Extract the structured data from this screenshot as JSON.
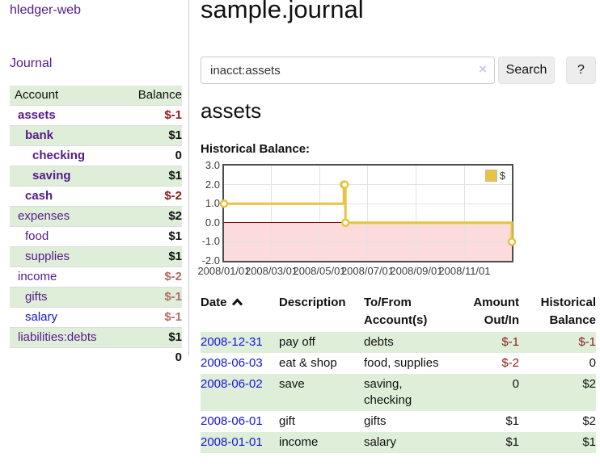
{
  "app_title": "hledger-web",
  "sidebar": {
    "journal_link": "Journal",
    "account_header": "Account",
    "balance_header": "Balance",
    "accounts": [
      {
        "name": "assets",
        "balance": "$-1"
      },
      {
        "name": "bank",
        "balance": "$1"
      },
      {
        "name": "checking",
        "balance": "0"
      },
      {
        "name": "saving",
        "balance": "$1"
      },
      {
        "name": "cash",
        "balance": "$-2"
      },
      {
        "name": "expenses",
        "balance": "$2"
      },
      {
        "name": "food",
        "balance": "$1"
      },
      {
        "name": "supplies",
        "balance": "$1"
      },
      {
        "name": "income",
        "balance": "$-2"
      },
      {
        "name": "gifts",
        "balance": "$-1"
      },
      {
        "name": "salary",
        "balance": "$-1"
      },
      {
        "name": "liabilities:debts",
        "balance": "$1"
      }
    ],
    "total": "0"
  },
  "main": {
    "title": "sample.journal",
    "search": {
      "value": "inacct:assets",
      "clear_icon": "×",
      "search_button": "Search",
      "help_button": "?"
    },
    "account_heading": "assets",
    "section_label": "Historical Balance:"
  },
  "chart_data": {
    "type": "line",
    "stepped": true,
    "title": "Historical Balance:",
    "x_range": [
      "2008-01-01",
      "2008-12-31"
    ],
    "ylim": [
      -2,
      3
    ],
    "y_ticks": [
      "3.0",
      "2.0",
      "1.0",
      "0.0",
      "-1.0",
      "-2.0"
    ],
    "x_ticks": [
      {
        "date": "2008-01-01",
        "label": "2008/01/01"
      },
      {
        "date": "2008-03-01",
        "label": "2008/03/01"
      },
      {
        "date": "2008-05-01",
        "label": "2008/05/01"
      },
      {
        "date": "2008-07-01",
        "label": "2008/07/01"
      },
      {
        "date": "2008-09-01",
        "label": "2008/09/01"
      },
      {
        "date": "2008-11-01",
        "label": "2008/11/01"
      }
    ],
    "series": [
      {
        "name": "$",
        "color": "#e9c23e",
        "points": [
          {
            "date": "2008-01-01",
            "value": 1
          },
          {
            "date": "2008-06-01",
            "value": 2
          },
          {
            "date": "2008-06-02",
            "value": 2
          },
          {
            "date": "2008-06-03",
            "value": 0
          },
          {
            "date": "2008-12-31",
            "value": -1
          }
        ]
      }
    ],
    "legend": {
      "label": "$",
      "position": "top-right"
    },
    "grid": true,
    "negative_region_color": "#fbdbdb",
    "zero_line_color": "#8b0000"
  },
  "register": {
    "headers": {
      "date": "Date",
      "description": "Description",
      "accounts": "To/From Account(s)",
      "amount": "Amount Out/In",
      "balance": "Historical Balance"
    },
    "rows": [
      {
        "date": "2008-12-31",
        "description": "pay off",
        "accounts": "debts",
        "amount": "$-1",
        "balance": "$-1"
      },
      {
        "date": "2008-06-03",
        "description": "eat & shop",
        "accounts": "food, supplies",
        "amount": "$-2",
        "balance": "0"
      },
      {
        "date": "2008-06-02",
        "description": "save",
        "accounts": "saving, checking",
        "amount": "0",
        "balance": "$2"
      },
      {
        "date": "2008-06-01",
        "description": "gift",
        "accounts": "gifts",
        "amount": "$1",
        "balance": "$2"
      },
      {
        "date": "2008-01-01",
        "description": "income",
        "accounts": "salary",
        "amount": "$1",
        "balance": "$1"
      }
    ]
  }
}
